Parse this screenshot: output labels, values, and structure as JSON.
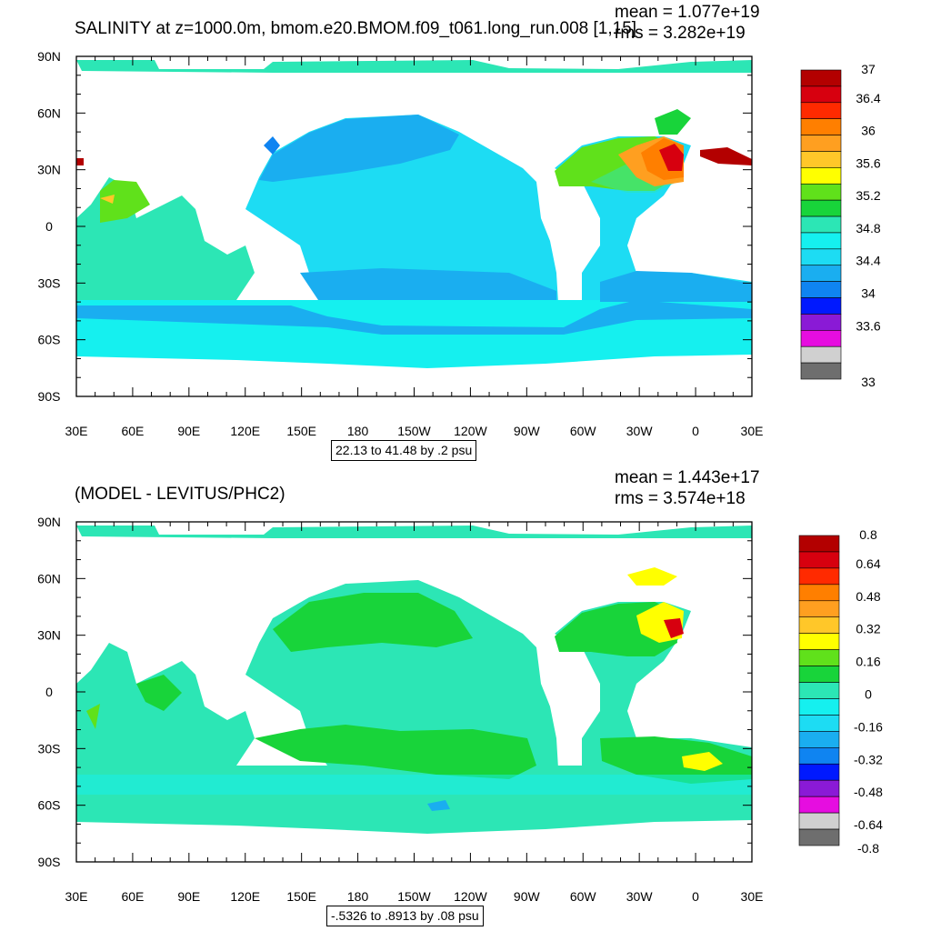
{
  "chart_data": [
    {
      "type": "heatmap",
      "subtype": "filled-contour-map",
      "title": "SALINITY at z=1000.0m, bmom.e20.BMOM.f09_t061.long_run.008 [1,15]",
      "stats": {
        "mean": "mean = 1.077e+19",
        "rms": "rms = 3.282e+19"
      },
      "x_ticks": [
        "30E",
        "60E",
        "90E",
        "120E",
        "150E",
        "180",
        "150W",
        "120W",
        "90W",
        "60W",
        "30W",
        "0",
        "30E"
      ],
      "y_ticks": [
        "90N",
        "60N",
        "30N",
        "0",
        "30S",
        "60S",
        "90S"
      ],
      "range_label": "22.13 to 41.48 by .2 psu",
      "colorbar": {
        "labels": [
          "37",
          "36.4",
          "36",
          "35.6",
          "35.2",
          "34.8",
          "34.4",
          "34",
          "33.6",
          "33"
        ],
        "colors": [
          "#b30000",
          "#d7000f",
          "#ff2a00",
          "#ff7f00",
          "#ff9f20",
          "#ffc729",
          "#ffff00",
          "#60e11b",
          "#18d43a",
          "#2ce6b5",
          "#15f0ef",
          "#1ddcf3",
          "#1aaef0",
          "#0f84f1",
          "#0019fe",
          "#8a1ad6",
          "#e60de0",
          "#d0d0d0",
          "#6e6e6e"
        ]
      }
    },
    {
      "type": "heatmap",
      "subtype": "filled-contour-map",
      "title": "(MODEL - LEVITUS/PHC2)",
      "stats": {
        "mean": "mean = 1.443e+17",
        "rms": "rms = 3.574e+18"
      },
      "x_ticks": [
        "30E",
        "60E",
        "90E",
        "120E",
        "150E",
        "180",
        "150W",
        "120W",
        "90W",
        "60W",
        "30W",
        "0",
        "30E"
      ],
      "y_ticks": [
        "90N",
        "60N",
        "30N",
        "0",
        "30S",
        "60S",
        "90S"
      ],
      "range_label": "-.5326 to .8913 by .08 psu",
      "colorbar": {
        "labels": [
          "0.8",
          "0.64",
          "0.48",
          "0.32",
          "0.16",
          "0",
          "-0.16",
          "-0.32",
          "-0.48",
          "-0.64",
          "-0.8"
        ],
        "colors": [
          "#b30000",
          "#d7000f",
          "#ff2a00",
          "#ff7f00",
          "#ff9f20",
          "#ffc729",
          "#ffff00",
          "#60e11b",
          "#18d43a",
          "#2ce6b5",
          "#15f0ef",
          "#1ddcf3",
          "#1aaef0",
          "#0f84f1",
          "#0019fe",
          "#8a1ad6",
          "#e60de0",
          "#d0d0d0",
          "#6e6e6e"
        ]
      }
    }
  ]
}
